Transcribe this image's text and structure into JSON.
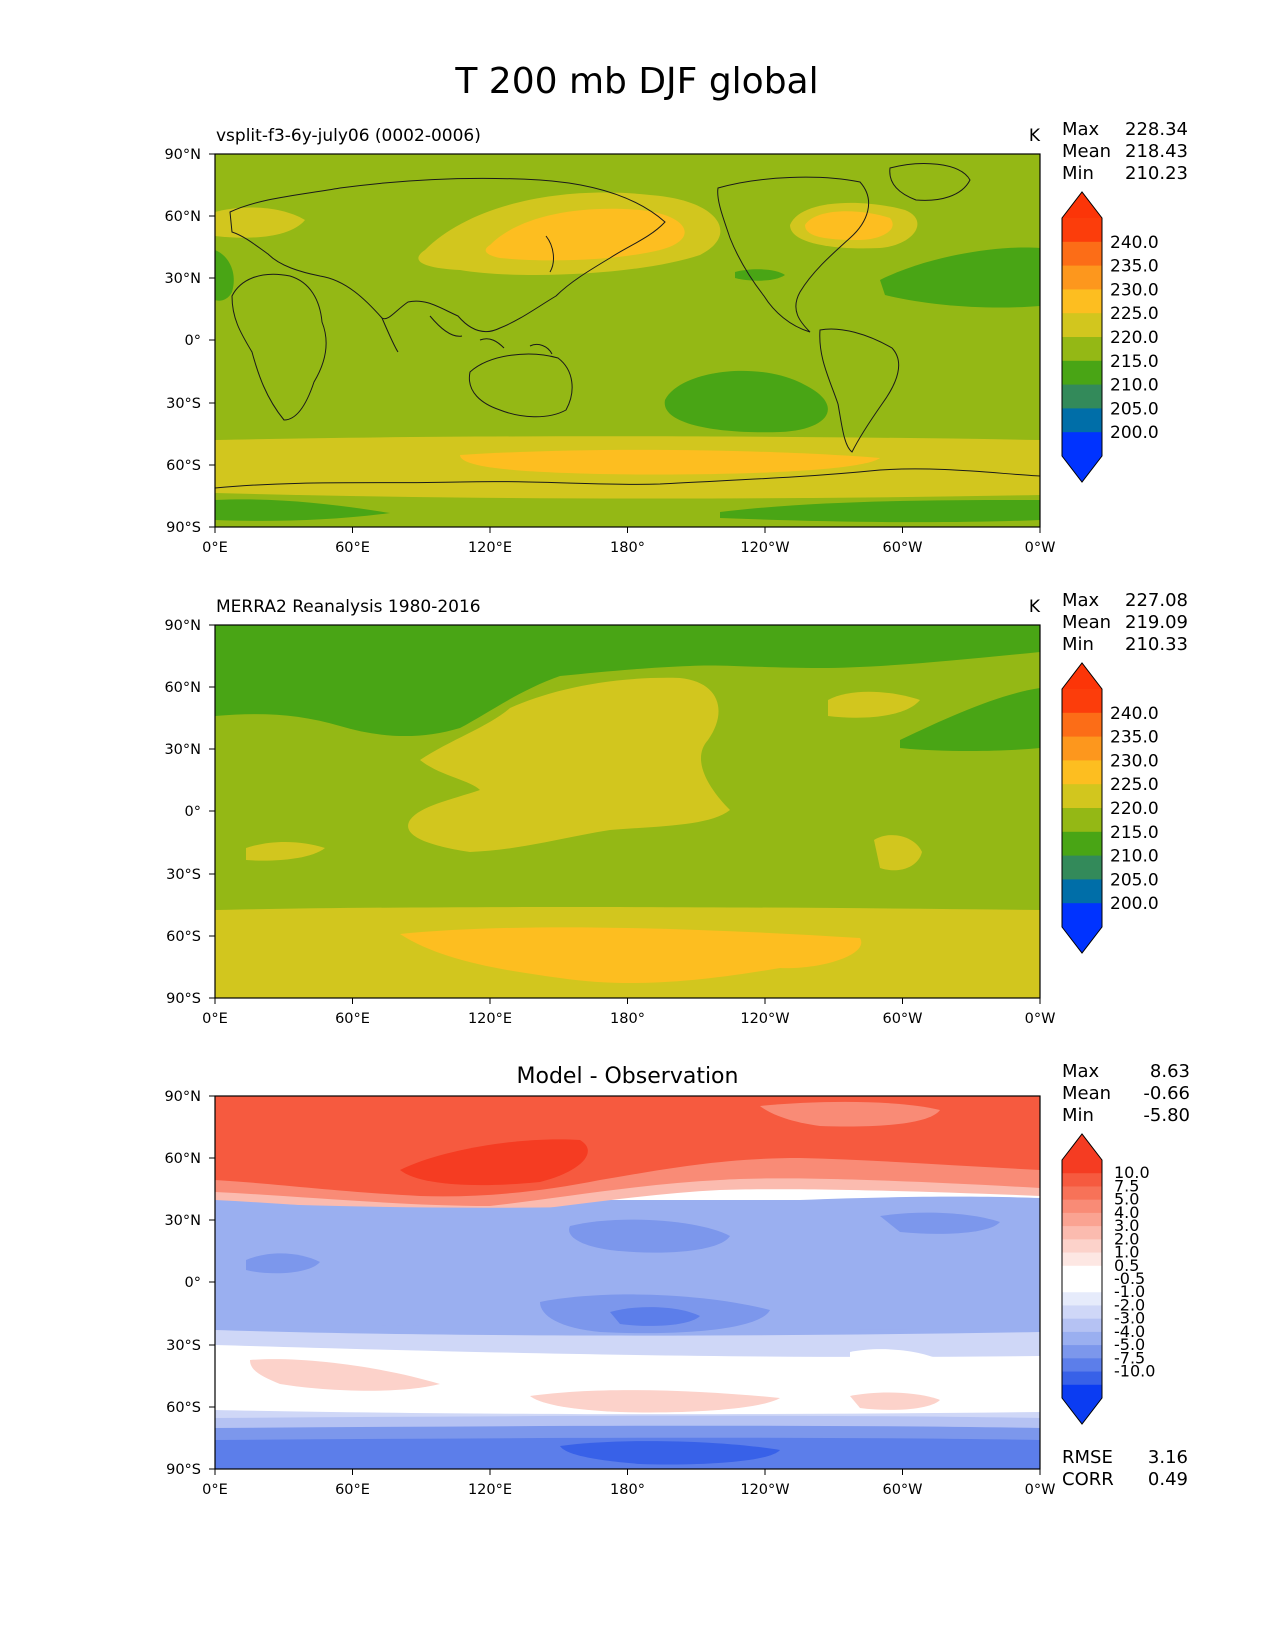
{
  "figure": {
    "title": "T 200 mb DJF global"
  },
  "axes": {
    "lat_ticks": [
      "90°N",
      "60°N",
      "30°N",
      "0°",
      "30°S",
      "60°S",
      "90°S"
    ],
    "lon_ticks": [
      "0°E",
      "60°E",
      "120°E",
      "180°",
      "120°W",
      "60°W",
      "0°W"
    ]
  },
  "colors": {
    "abs_levels": [
      "#0033ff",
      "#006ea8",
      "#338a5a",
      "#49a515",
      "#94b815",
      "#d2c61e",
      "#fdbe20",
      "#fd971d",
      "#fc6d17",
      "#fc3d0b"
    ],
    "abs_tip_low": "#0033ff",
    "abs_tip_high": "#fc3508",
    "diff_levels": [
      "#0b3cf2",
      "#3861e8",
      "#5c7eea",
      "#7c97ec",
      "#9aaff0",
      "#b5c2f3",
      "#cfd7f7",
      "#e6ebfb",
      "#ffffff",
      "#ffffff",
      "#fde7e3",
      "#fcd2ca",
      "#fbbbaf",
      "#faa392",
      "#f98b76",
      "#f77258",
      "#f65a3f",
      "#f53c22"
    ],
    "coast": "#1a1a1a"
  },
  "panels": [
    {
      "id": "model",
      "left_title": "vsplit-f3-6y-july06 (0002-0006)",
      "center_title": "",
      "units": "K",
      "stats": [
        {
          "label": "Max",
          "value": "228.34"
        },
        {
          "label": "Mean",
          "value": "218.43"
        },
        {
          "label": "Min",
          "value": "210.23"
        }
      ],
      "colorbar_labels": [
        "240.0",
        "235.0",
        "230.0",
        "225.0",
        "220.0",
        "215.0",
        "210.0",
        "205.0",
        "200.0"
      ],
      "base_color": "#94b815"
    },
    {
      "id": "obs",
      "left_title": "MERRA2 Reanalysis 1980-2016",
      "center_title": "",
      "units": "K",
      "stats": [
        {
          "label": "Max",
          "value": "227.08"
        },
        {
          "label": "Mean",
          "value": "219.09"
        },
        {
          "label": "Min",
          "value": "210.33"
        }
      ],
      "colorbar_labels": [
        "240.0",
        "235.0",
        "230.0",
        "225.0",
        "220.0",
        "215.0",
        "210.0",
        "205.0",
        "200.0"
      ],
      "base_color": "#94b815"
    },
    {
      "id": "diff",
      "left_title": "",
      "center_title": "Model - Observation",
      "units": "",
      "stats": [
        {
          "label": "Max",
          "value": "8.63"
        },
        {
          "label": "Mean",
          "value": "-0.66"
        },
        {
          "label": "Min",
          "value": "-5.80"
        }
      ],
      "colorbar_labels": [
        "10.0",
        "7.5",
        "5.0",
        "4.0",
        "3.0",
        "2.0",
        "1.0",
        "0.5",
        "-0.5",
        "-1.0",
        "-2.0",
        "-3.0",
        "-4.0",
        "-5.0",
        "-7.5",
        "-10.0"
      ],
      "extra_stats": [
        {
          "label": "RMSE",
          "value": "3.16"
        },
        {
          "label": "CORR",
          "value": "0.49"
        }
      ]
    }
  ]
}
